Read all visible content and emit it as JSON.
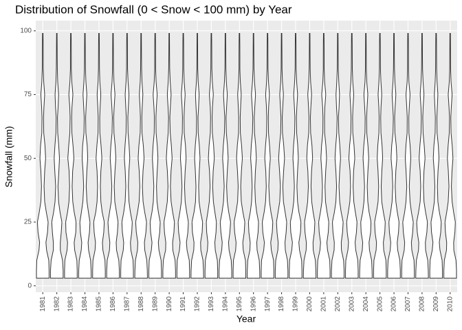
{
  "chart_data": {
    "type": "violin",
    "title": "Distribution of Snowfall (0 < Snow < 100 mm) by Year",
    "x_label": "Year",
    "y_label": "Snowfall (mm)",
    "categories": [
      "1981",
      "1982",
      "1983",
      "1984",
      "1985",
      "1986",
      "1987",
      "1988",
      "1989",
      "1990",
      "1991",
      "1992",
      "1993",
      "1994",
      "1995",
      "1996",
      "1997",
      "1998",
      "1999",
      "2000",
      "2001",
      "2002",
      "2003",
      "2004",
      "2005",
      "2006",
      "2007",
      "2008",
      "2009",
      "2010"
    ],
    "density_y": [
      3,
      6,
      10,
      14,
      17,
      21,
      25,
      29,
      33,
      39,
      45,
      50,
      55,
      60,
      66,
      70,
      75,
      80,
      85,
      90,
      95,
      99
    ],
    "densities": [
      [
        1,
        1,
        0.95,
        0.6,
        0.5,
        0.75,
        0.85,
        0.55,
        0.3,
        0.2,
        0.3,
        0.45,
        0.35,
        0.15,
        0.12,
        0.18,
        0.3,
        0.15,
        0.08,
        0.07,
        0.06,
        0.04
      ],
      [
        1,
        1,
        0.9,
        0.55,
        0.55,
        0.7,
        0.8,
        0.5,
        0.28,
        0.18,
        0.32,
        0.42,
        0.3,
        0.14,
        0.1,
        0.2,
        0.28,
        0.14,
        0.08,
        0.06,
        0.05,
        0.04
      ],
      [
        1,
        1,
        0.95,
        0.6,
        0.52,
        0.78,
        0.82,
        0.52,
        0.3,
        0.2,
        0.28,
        0.48,
        0.34,
        0.16,
        0.12,
        0.17,
        0.32,
        0.15,
        0.07,
        0.07,
        0.06,
        0.04
      ],
      [
        1,
        0.98,
        0.9,
        0.58,
        0.5,
        0.72,
        0.8,
        0.55,
        0.32,
        0.2,
        0.3,
        0.44,
        0.36,
        0.15,
        0.11,
        0.19,
        0.3,
        0.16,
        0.08,
        0.06,
        0.05,
        0.04
      ],
      [
        1,
        1,
        0.95,
        0.62,
        0.55,
        0.76,
        0.84,
        0.5,
        0.3,
        0.22,
        0.3,
        0.46,
        0.33,
        0.14,
        0.12,
        0.18,
        0.29,
        0.14,
        0.08,
        0.07,
        0.06,
        0.04
      ],
      [
        1,
        1,
        0.92,
        0.56,
        0.5,
        0.7,
        0.8,
        0.54,
        0.28,
        0.19,
        0.31,
        0.45,
        0.34,
        0.15,
        0.1,
        0.18,
        0.31,
        0.15,
        0.07,
        0.06,
        0.05,
        0.04
      ],
      [
        1,
        1,
        0.95,
        0.6,
        0.53,
        0.74,
        0.82,
        0.52,
        0.3,
        0.2,
        0.29,
        0.43,
        0.32,
        0.16,
        0.12,
        0.2,
        0.3,
        0.16,
        0.08,
        0.07,
        0.06,
        0.04
      ],
      [
        1,
        0.98,
        0.9,
        0.58,
        0.52,
        0.76,
        0.86,
        0.56,
        0.31,
        0.2,
        0.3,
        0.47,
        0.35,
        0.14,
        0.11,
        0.17,
        0.28,
        0.14,
        0.08,
        0.06,
        0.05,
        0.04
      ],
      [
        1,
        1,
        0.94,
        0.6,
        0.5,
        0.72,
        0.8,
        0.5,
        0.29,
        0.21,
        0.32,
        0.44,
        0.33,
        0.15,
        0.12,
        0.19,
        0.32,
        0.15,
        0.07,
        0.07,
        0.06,
        0.04
      ],
      [
        1,
        1,
        0.93,
        0.57,
        0.54,
        0.75,
        0.83,
        0.54,
        0.3,
        0.19,
        0.29,
        0.46,
        0.34,
        0.16,
        0.1,
        0.18,
        0.3,
        0.16,
        0.08,
        0.06,
        0.05,
        0.04
      ],
      [
        1,
        1,
        0.95,
        0.6,
        0.5,
        0.73,
        0.81,
        0.53,
        0.3,
        0.2,
        0.3,
        0.45,
        0.35,
        0.15,
        0.12,
        0.18,
        0.3,
        0.15,
        0.08,
        0.07,
        0.06,
        0.04
      ],
      [
        1,
        0.98,
        0.9,
        0.56,
        0.52,
        0.77,
        0.84,
        0.51,
        0.28,
        0.21,
        0.31,
        0.43,
        0.32,
        0.14,
        0.11,
        0.2,
        0.29,
        0.14,
        0.07,
        0.06,
        0.05,
        0.04
      ],
      [
        1,
        1,
        0.95,
        0.62,
        0.55,
        0.74,
        0.8,
        0.55,
        0.32,
        0.2,
        0.29,
        0.47,
        0.36,
        0.16,
        0.12,
        0.17,
        0.31,
        0.16,
        0.08,
        0.07,
        0.06,
        0.04
      ],
      [
        1,
        1,
        0.92,
        0.58,
        0.5,
        0.71,
        0.82,
        0.52,
        0.3,
        0.19,
        0.3,
        0.44,
        0.33,
        0.15,
        0.1,
        0.19,
        0.3,
        0.15,
        0.08,
        0.06,
        0.05,
        0.04
      ],
      [
        1,
        1,
        0.95,
        0.6,
        0.53,
        0.76,
        0.85,
        0.54,
        0.29,
        0.2,
        0.31,
        0.46,
        0.34,
        0.14,
        0.12,
        0.18,
        0.28,
        0.14,
        0.07,
        0.07,
        0.06,
        0.04
      ],
      [
        1,
        0.98,
        0.91,
        0.57,
        0.52,
        0.73,
        0.8,
        0.5,
        0.3,
        0.21,
        0.3,
        0.45,
        0.35,
        0.16,
        0.11,
        0.2,
        0.32,
        0.16,
        0.08,
        0.06,
        0.05,
        0.04
      ],
      [
        1,
        1,
        0.95,
        0.6,
        0.5,
        0.75,
        0.83,
        0.53,
        0.31,
        0.2,
        0.28,
        0.44,
        0.32,
        0.15,
        0.12,
        0.17,
        0.3,
        0.15,
        0.08,
        0.07,
        0.06,
        0.04
      ],
      [
        1,
        1,
        0.93,
        0.59,
        0.54,
        0.72,
        0.81,
        0.55,
        0.29,
        0.19,
        0.32,
        0.47,
        0.34,
        0.14,
        0.1,
        0.18,
        0.29,
        0.14,
        0.07,
        0.06,
        0.05,
        0.04
      ],
      [
        1,
        1,
        0.95,
        0.61,
        0.51,
        0.77,
        0.84,
        0.51,
        0.3,
        0.2,
        0.3,
        0.43,
        0.33,
        0.16,
        0.12,
        0.19,
        0.31,
        0.16,
        0.08,
        0.07,
        0.06,
        0.04
      ],
      [
        1,
        0.98,
        0.9,
        0.56,
        0.53,
        0.74,
        0.82,
        0.54,
        0.32,
        0.21,
        0.29,
        0.46,
        0.36,
        0.15,
        0.11,
        0.18,
        0.3,
        0.15,
        0.08,
        0.06,
        0.05,
        0.04
      ],
      [
        1,
        1,
        0.95,
        0.6,
        0.5,
        0.72,
        0.8,
        0.52,
        0.28,
        0.2,
        0.31,
        0.45,
        0.34,
        0.14,
        0.12,
        0.17,
        0.32,
        0.14,
        0.07,
        0.07,
        0.06,
        0.04
      ],
      [
        1,
        1,
        0.92,
        0.58,
        0.55,
        0.76,
        0.85,
        0.53,
        0.3,
        0.19,
        0.3,
        0.44,
        0.32,
        0.16,
        0.1,
        0.2,
        0.28,
        0.16,
        0.08,
        0.06,
        0.05,
        0.04
      ],
      [
        1,
        1,
        0.95,
        0.62,
        0.52,
        0.73,
        0.82,
        0.55,
        0.31,
        0.2,
        0.28,
        0.47,
        0.35,
        0.15,
        0.12,
        0.18,
        0.3,
        0.15,
        0.08,
        0.07,
        0.06,
        0.04
      ],
      [
        1,
        0.98,
        0.91,
        0.57,
        0.5,
        0.75,
        0.81,
        0.5,
        0.3,
        0.21,
        0.32,
        0.45,
        0.33,
        0.14,
        0.11,
        0.19,
        0.31,
        0.14,
        0.07,
        0.06,
        0.05,
        0.04
      ],
      [
        1,
        1,
        0.95,
        0.6,
        0.54,
        0.77,
        0.84,
        0.54,
        0.29,
        0.2,
        0.3,
        0.43,
        0.34,
        0.16,
        0.12,
        0.17,
        0.29,
        0.16,
        0.08,
        0.07,
        0.06,
        0.04
      ],
      [
        1,
        1,
        0.93,
        0.59,
        0.51,
        0.72,
        0.8,
        0.52,
        0.3,
        0.19,
        0.29,
        0.46,
        0.36,
        0.15,
        0.1,
        0.18,
        0.3,
        0.15,
        0.08,
        0.06,
        0.05,
        0.04
      ],
      [
        1,
        1,
        0.95,
        0.6,
        0.53,
        0.74,
        0.83,
        0.53,
        0.32,
        0.2,
        0.31,
        0.44,
        0.33,
        0.14,
        0.12,
        0.2,
        0.32,
        0.14,
        0.07,
        0.07,
        0.06,
        0.04
      ],
      [
        1,
        0.98,
        0.9,
        0.56,
        0.52,
        0.76,
        0.85,
        0.55,
        0.3,
        0.21,
        0.3,
        0.47,
        0.34,
        0.16,
        0.11,
        0.17,
        0.3,
        0.16,
        0.08,
        0.06,
        0.05,
        0.04
      ],
      [
        1,
        1,
        0.95,
        0.61,
        0.5,
        0.73,
        0.81,
        0.51,
        0.28,
        0.2,
        0.3,
        0.45,
        0.35,
        0.15,
        0.12,
        0.19,
        0.28,
        0.15,
        0.08,
        0.07,
        0.06,
        0.04
      ],
      [
        1,
        1,
        0.92,
        0.58,
        0.55,
        0.75,
        0.82,
        0.54,
        0.31,
        0.19,
        0.29,
        0.44,
        0.32,
        0.14,
        0.1,
        0.18,
        0.31,
        0.14,
        0.07,
        0.06,
        0.05,
        0.04
      ]
    ],
    "ylim": [
      -2.5,
      104
    ],
    "yticks": [
      0,
      25,
      50,
      75,
      100
    ],
    "grid": true,
    "fill": "#ffffff",
    "line_color": "#333333",
    "panel_color": "#ebebeb"
  }
}
